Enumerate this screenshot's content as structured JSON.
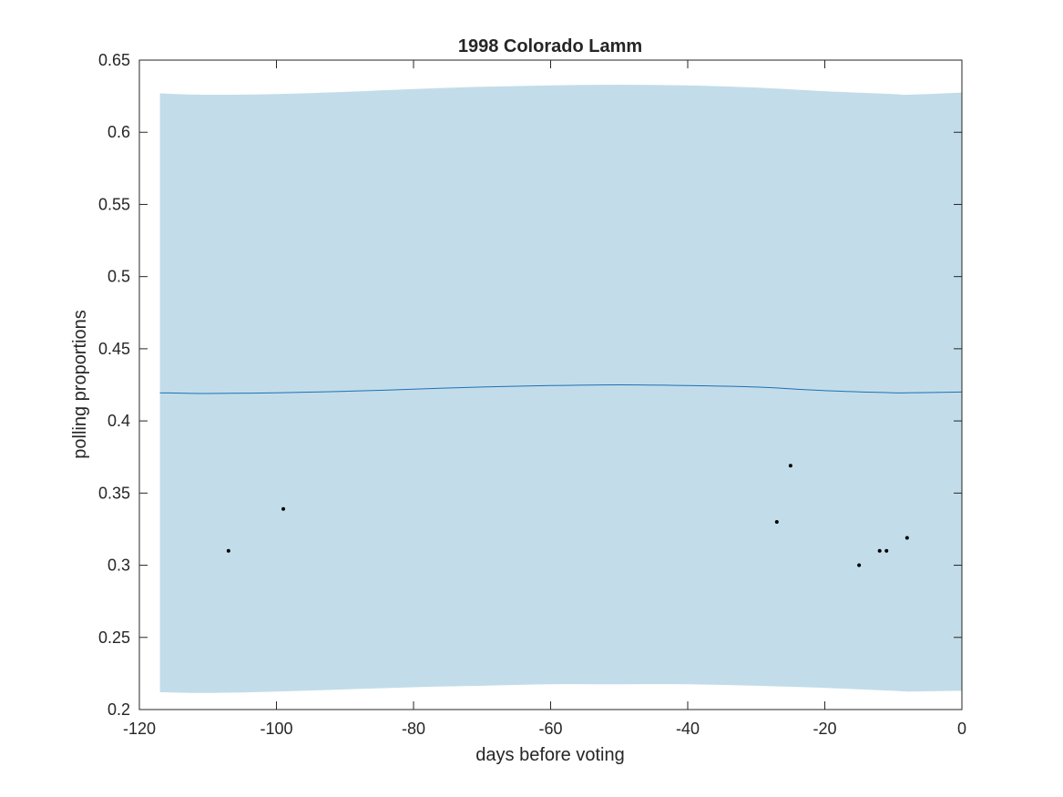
{
  "chart_data": {
    "type": "line",
    "title": "1998 Colorado Lamm",
    "xlabel": "days before voting",
    "ylabel": "polling proportions",
    "xlim": [
      -120,
      0
    ],
    "ylim": [
      0.2,
      0.65
    ],
    "x_ticks": [
      -120,
      -100,
      -80,
      -60,
      -40,
      -20,
      0
    ],
    "x_tick_labels": [
      "-120",
      "-100",
      "-80",
      "-60",
      "-40",
      "-20",
      "0"
    ],
    "y_ticks": [
      0.2,
      0.25,
      0.3,
      0.35,
      0.4,
      0.45,
      0.5,
      0.55,
      0.6,
      0.65
    ],
    "y_tick_labels": [
      "0.2",
      "0.25",
      "0.3",
      "0.35",
      "0.4",
      "0.45",
      "0.5",
      "0.55",
      "0.6",
      "0.65"
    ],
    "grid": false,
    "colors": {
      "band": "#c2dde9",
      "line": "#1f6fb5",
      "points": "#000000",
      "axes": "#262626"
    },
    "trend": {
      "x": [
        -117,
        -110,
        -100,
        -90,
        -80,
        -70,
        -60,
        -50,
        -40,
        -30,
        -20,
        -10,
        -8,
        0
      ],
      "y": [
        0.4195,
        0.419,
        0.4195,
        0.4205,
        0.422,
        0.4235,
        0.4245,
        0.425,
        0.4245,
        0.4235,
        0.421,
        0.4195,
        0.4195,
        0.42
      ]
    },
    "band": {
      "x": [
        -117,
        -110,
        -100,
        -90,
        -80,
        -70,
        -60,
        -50,
        -40,
        -30,
        -20,
        -10,
        -8,
        0
      ],
      "upper": [
        0.627,
        0.626,
        0.6265,
        0.628,
        0.63,
        0.6315,
        0.6325,
        0.633,
        0.6325,
        0.631,
        0.6285,
        0.6265,
        0.626,
        0.6275
      ],
      "lower": [
        0.212,
        0.2115,
        0.2125,
        0.214,
        0.2155,
        0.2165,
        0.2175,
        0.2175,
        0.2175,
        0.2165,
        0.215,
        0.213,
        0.2125,
        0.213
      ]
    },
    "points": {
      "x": [
        -107,
        -99,
        -27,
        -25,
        -15,
        -12,
        -11,
        -8
      ],
      "y": [
        0.31,
        0.339,
        0.33,
        0.369,
        0.3,
        0.31,
        0.31,
        0.319
      ]
    }
  }
}
